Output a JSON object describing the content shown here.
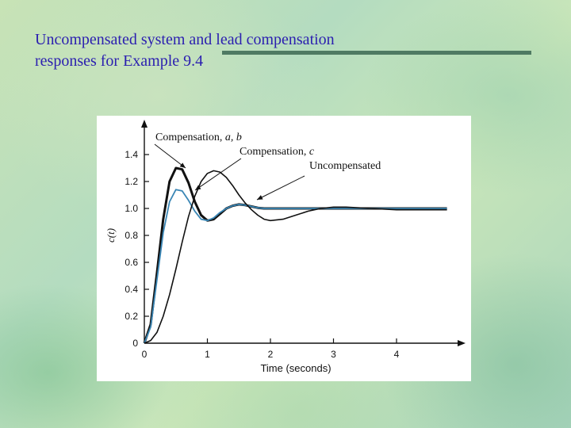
{
  "slide": {
    "title_line1": "Uncompensated system and lead compensation",
    "title_line2": "responses for Example 9.4"
  },
  "colors": {
    "title": "#2b1fb0",
    "uncompensated": "#111111",
    "compensation_ab": "#111111",
    "compensation_c": "#3a86b5"
  },
  "chart_data": {
    "type": "line",
    "title": "",
    "xlabel": "Time (seconds)",
    "ylabel": "c(t)",
    "xlim": [
      0,
      4.8
    ],
    "ylim": [
      0,
      1.5
    ],
    "xticks": [
      0,
      1,
      2,
      3,
      4
    ],
    "yticks": [
      0.2,
      0.4,
      0.6,
      0.8,
      1.0,
      1.2,
      1.4
    ],
    "ytick_labels": [
      "0.2",
      "0.4",
      "0.6",
      "0.8",
      "1.0",
      "1.2",
      "1.4"
    ],
    "xtick_labels": [
      "0",
      "1",
      "2",
      "3",
      "4"
    ],
    "origin_label": "0",
    "grid": false,
    "series": [
      {
        "name": "Compensation, a, b",
        "color": "#111111",
        "x": [
          0,
          0.1,
          0.2,
          0.3,
          0.4,
          0.5,
          0.6,
          0.7,
          0.8,
          0.9,
          1.0,
          1.1,
          1.2,
          1.3,
          1.4,
          1.5,
          1.6,
          1.7,
          1.8,
          1.9,
          2.0,
          2.2,
          2.5,
          3.0,
          3.5,
          4.0,
          4.8
        ],
        "values": [
          0,
          0.14,
          0.52,
          0.92,
          1.2,
          1.3,
          1.29,
          1.19,
          1.05,
          0.95,
          0.91,
          0.92,
          0.96,
          1.0,
          1.02,
          1.03,
          1.025,
          1.015,
          1.005,
          1.0,
          1.0,
          1.0,
          1.0,
          1.0,
          1.0,
          1.0,
          1.0
        ]
      },
      {
        "name": "Compensation, c",
        "color": "#3a86b5",
        "x": [
          0,
          0.1,
          0.2,
          0.3,
          0.4,
          0.5,
          0.6,
          0.7,
          0.8,
          0.9,
          1.0,
          1.1,
          1.2,
          1.3,
          1.4,
          1.5,
          1.6,
          1.7,
          1.8,
          1.9,
          2.0,
          2.2,
          2.5,
          3.0,
          3.5,
          4.0,
          4.8
        ],
        "values": [
          0,
          0.12,
          0.47,
          0.82,
          1.05,
          1.14,
          1.13,
          1.06,
          0.98,
          0.92,
          0.91,
          0.93,
          0.97,
          1.0,
          1.02,
          1.03,
          1.025,
          1.015,
          1.005,
          1.0,
          1.0,
          1.0,
          1.0,
          1.0,
          1.0,
          1.0,
          1.0
        ]
      },
      {
        "name": "Uncompensated",
        "color": "#111111",
        "x": [
          0,
          0.1,
          0.2,
          0.3,
          0.4,
          0.5,
          0.6,
          0.7,
          0.8,
          0.9,
          1.0,
          1.1,
          1.2,
          1.3,
          1.4,
          1.5,
          1.6,
          1.7,
          1.8,
          1.9,
          2.0,
          2.2,
          2.4,
          2.6,
          2.8,
          3.0,
          3.2,
          3.4,
          3.6,
          3.8,
          4.0,
          4.4,
          4.8
        ],
        "values": [
          0,
          0.02,
          0.08,
          0.2,
          0.36,
          0.55,
          0.75,
          0.94,
          1.09,
          1.2,
          1.26,
          1.28,
          1.27,
          1.23,
          1.17,
          1.1,
          1.04,
          0.99,
          0.95,
          0.92,
          0.91,
          0.92,
          0.95,
          0.98,
          1.0,
          1.01,
          1.01,
          1.005,
          1.0,
          0.995,
          0.99,
          0.99,
          0.99
        ]
      }
    ],
    "annotations": [
      {
        "text_prefix": "Compensation, ",
        "text_var": "a, b",
        "target_series": 0
      },
      {
        "text_prefix": "Compensation, ",
        "text_var": "c",
        "target_series": 1
      },
      {
        "text_prefix": "Uncompensated",
        "text_var": "",
        "target_series": 2
      }
    ]
  }
}
